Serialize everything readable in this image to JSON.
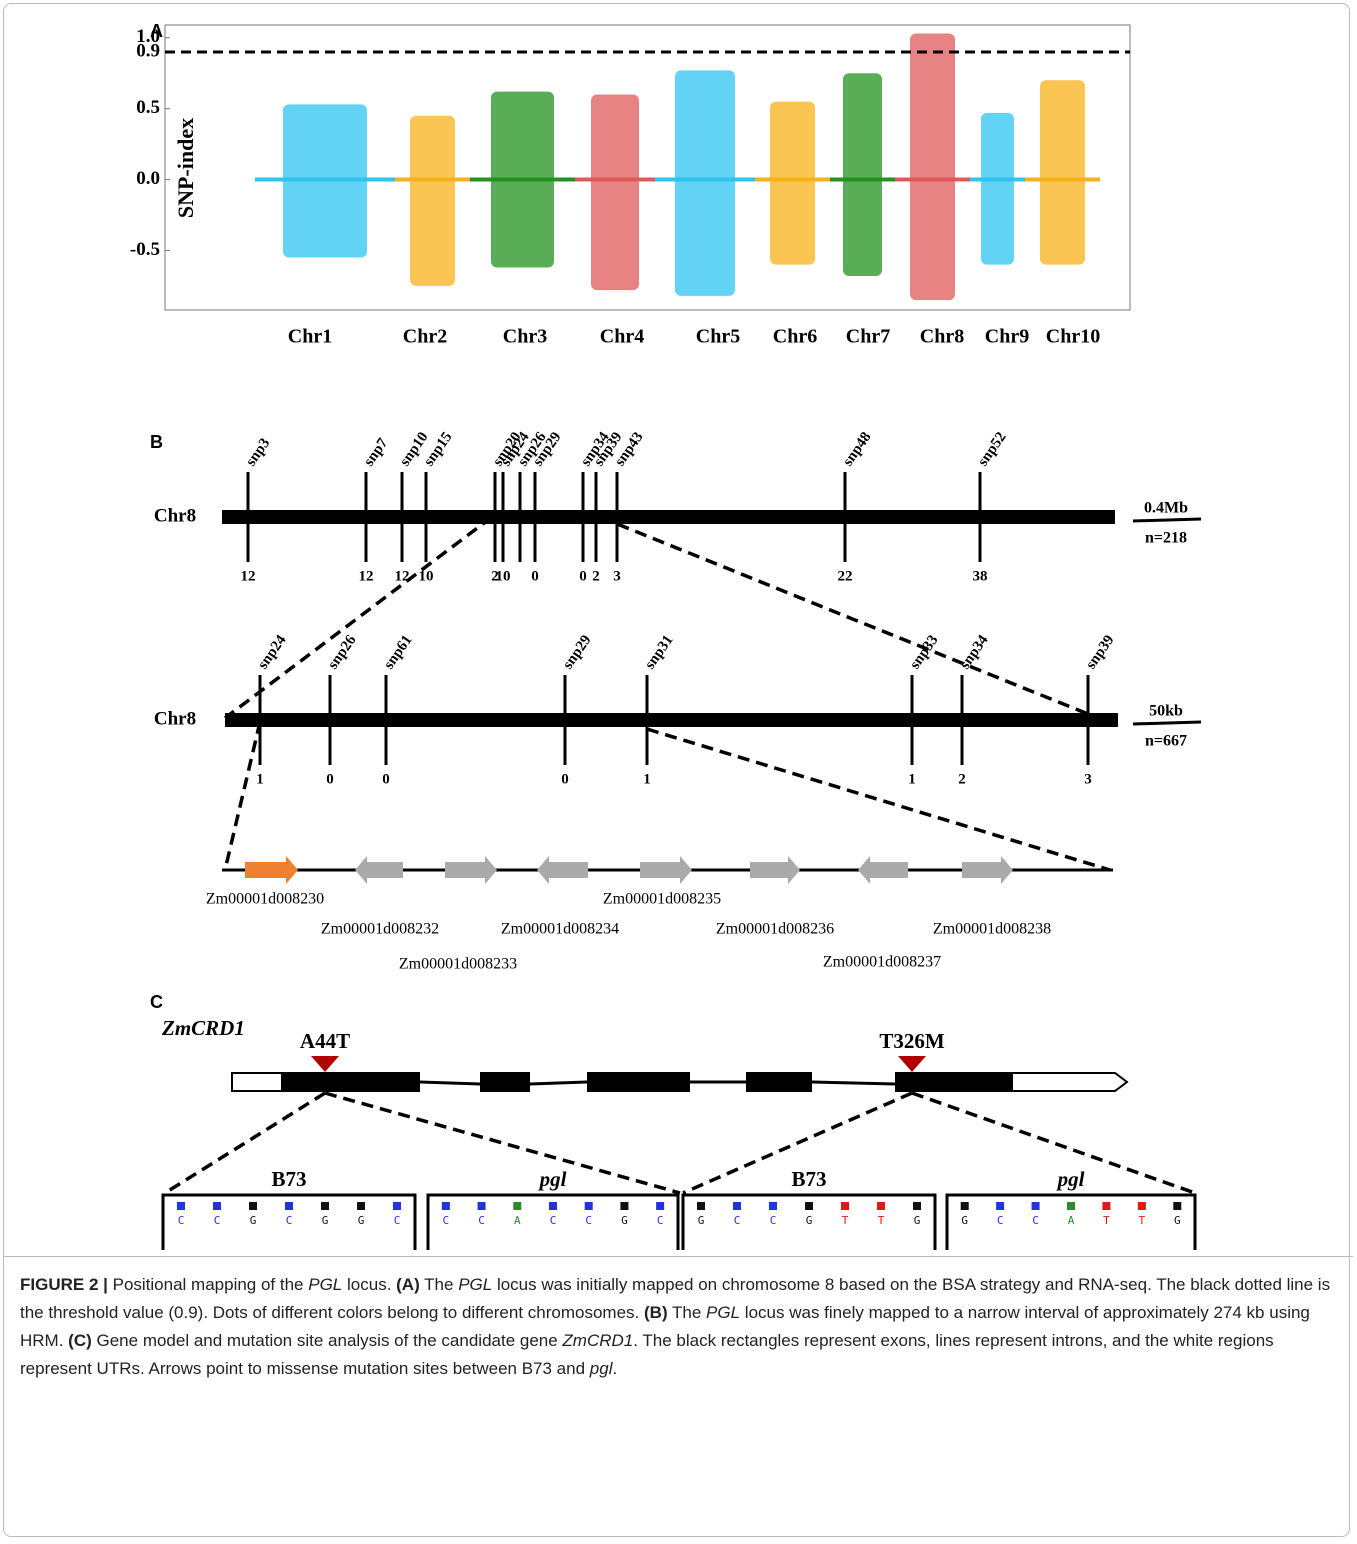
{
  "panel_a": {
    "label": "A",
    "y_label": "SNP-index",
    "yticks": [
      {
        "value": 1,
        "label": "1.0"
      },
      0.9,
      0.5,
      {
        "value": 0,
        "label": "0.0"
      },
      -0.5
    ],
    "ylim": [
      -0.92,
      1.09
    ],
    "threshold": 0.9,
    "chromosomes": [
      {
        "name": "Chr1",
        "color": "#2ec4f0",
        "min": -0.55,
        "max": 0.53
      },
      {
        "name": "Chr2",
        "color": "#f9b11a",
        "min": -0.75,
        "max": 0.45
      },
      {
        "name": "Chr3",
        "color": "#23921f",
        "min": -0.62,
        "max": 0.62
      },
      {
        "name": "Chr4",
        "color": "#e05a5a",
        "min": -0.78,
        "max": 0.6
      },
      {
        "name": "Chr5",
        "color": "#2ec4f0",
        "min": -0.82,
        "max": 0.77
      },
      {
        "name": "Chr6",
        "color": "#f9b11a",
        "min": -0.6,
        "max": 0.55
      },
      {
        "name": "Chr7",
        "color": "#23921f",
        "min": -0.68,
        "max": 0.75
      },
      {
        "name": "Chr8",
        "color": "#e05a5a",
        "min": -0.85,
        "max": 1.03
      },
      {
        "name": "Chr9",
        "color": "#2ec4f0",
        "min": -0.6,
        "max": 0.47
      },
      {
        "name": "Chr10",
        "color": "#f9b11a",
        "min": -0.6,
        "max": 0.7
      }
    ]
  },
  "panel_b": {
    "label": "B",
    "map1": {
      "chromosome": "Chr8",
      "scale": "0.4Mb",
      "population": "n=218",
      "markers": [
        {
          "name": "snp3",
          "recombinants": 12
        },
        {
          "name": "snp7",
          "recombinants": 12
        },
        {
          "name": "snp10",
          "recombinants": 12
        },
        {
          "name": "snp15",
          "recombinants": 10
        },
        {
          "name": "snp20",
          "recombinants": 2
        },
        {
          "name": "snp24",
          "recombinants": 10
        },
        {
          "name": "snp26"
        },
        {
          "name": "snp29",
          "recombinants": 0
        },
        {
          "name": "snp34",
          "recombinants": 0
        },
        {
          "name": "snp39",
          "recombinants": 2
        },
        {
          "name": "snp43",
          "recombinants": 3
        },
        {
          "name": "snp48",
          "recombinants": 22
        },
        {
          "name": "snp52",
          "recombinants": 38
        }
      ]
    },
    "map2": {
      "chromosome": "Chr8",
      "scale": "50kb",
      "population": "n=667",
      "markers": [
        {
          "name": "snp24",
          "recombinants": 1
        },
        {
          "name": "snp26",
          "recombinants": 0
        },
        {
          "name": "snp61",
          "recombinants": 0
        },
        {
          "name": "snp29",
          "recombinants": 0
        },
        {
          "name": "snp31",
          "recombinants": 1
        },
        {
          "name": "snp33",
          "recombinants": 1
        },
        {
          "name": "snp34",
          "recombinants": 2
        },
        {
          "name": "snp39",
          "recombinants": 3
        }
      ]
    },
    "genes": [
      "Zm00001d008230",
      "Zm00001d008232",
      "Zm00001d008233",
      "Zm00001d008234",
      "Zm00001d008235",
      "Zm00001d008236",
      "Zm00001d008237",
      "Zm00001d008238"
    ]
  },
  "panel_c": {
    "label": "C",
    "gene": "ZmCRD1",
    "mutations": [
      "A44T",
      "T326M"
    ],
    "chromatograms": [
      {
        "title": "B73",
        "bases": [
          "C",
          "C",
          "G",
          "C",
          "G",
          "G",
          "C"
        ]
      },
      {
        "title": "pgl",
        "bases": [
          "C",
          "C",
          "A",
          "C",
          "C",
          "G",
          "C"
        ]
      },
      {
        "title": "B73",
        "bases": [
          "G",
          "C",
          "C",
          "G",
          "T",
          "T",
          "G"
        ]
      },
      {
        "title": "pgl",
        "bases": [
          "G",
          "C",
          "C",
          "A",
          "T",
          "T",
          "G"
        ]
      }
    ]
  },
  "caption": {
    "parts": [
      "FIGURE 2 |",
      " Positional mapping of the ",
      "PGL",
      " locus. ",
      "(A)",
      " The ",
      "PGL",
      " locus was initially mapped on chromosome 8 based on the BSA strategy and RNA-seq. The black dotted line is the threshold value (0.9). Dots of different colors belong to different chromosomes. ",
      "(B)",
      " The ",
      "PGL",
      " locus was finely mapped to a narrow interval of approximately 274 kb using HRM. ",
      "(C)",
      " Gene model and mutation site analysis of the candidate gene ",
      "ZmCRD1",
      ". The black rectangles represent exons, lines represent introns, and the white regions represent UTRs. Arrows point to missense mutation sites between B73 and ",
      "pgl",
      "."
    ]
  }
}
